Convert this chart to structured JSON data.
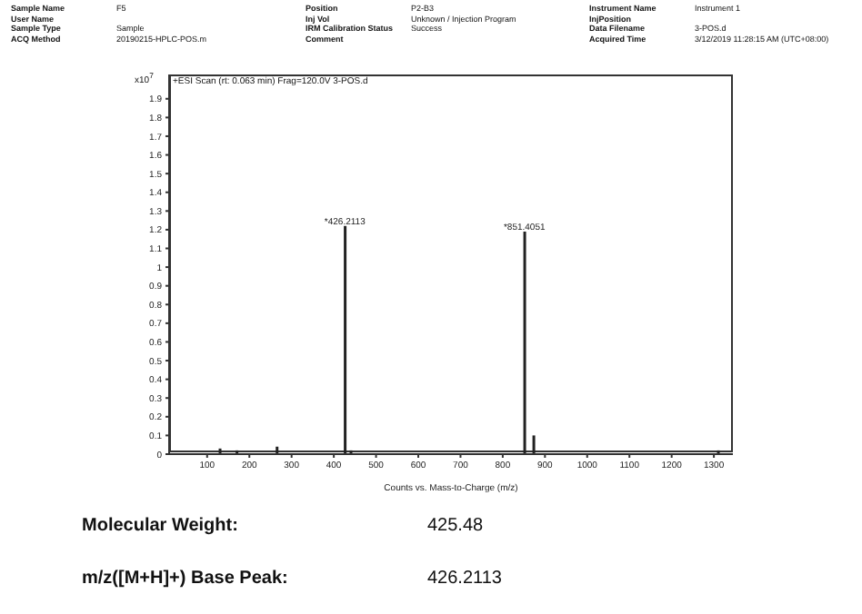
{
  "chart_data": {
    "type": "bar",
    "title": "+ESI Scan (rt: 0.063 min) Frag=120.0V 3-POS.d",
    "xlabel": "Counts vs. Mass-to-Charge (m/z)",
    "ylabel": "x10$^{7}$",
    "x": [
      130,
      170,
      265,
      426.2,
      440,
      851.4,
      873,
      1310
    ],
    "values": [
      0.03,
      0.02,
      0.04,
      1.22,
      0.02,
      1.19,
      0.1,
      0.02
    ],
    "color": "#222222",
    "xlim": [
      10,
      1345
    ],
    "xticks": [
      100,
      200,
      300,
      400,
      500,
      600,
      700,
      800,
      900,
      1000,
      1100,
      1200,
      1300
    ],
    "ylim": [
      0,
      2.03
    ],
    "yticks": [
      0,
      0.1,
      0.2,
      0.3,
      0.4,
      0.5,
      0.6,
      0.7,
      0.8,
      0.9,
      1,
      1.1,
      1.2,
      1.3,
      1.4,
      1.5,
      1.6,
      1.7,
      1.8,
      1.9
    ],
    "annotations": [
      "Sample Name\tF5",
      "User Name",
      "Sample Type\tSample",
      "ACQ Method\t20190215-HPLC-POS.m",
      "Position\tP2-B3",
      "Inj Vol\tUnknown / Injection Program",
      "IRM Calibration Status\tSuccess",
      "Comment",
      "Instrument Name\tInstrument 1",
      "InjPosition",
      "Data Filename\t3-POS.d",
      "Acquired Time\t3/12/2019 11:28:15 AM (UTC+08:00)",
      {
        "text": "*426.2113",
        "x": 426.2,
        "y": 1.22
      },
      {
        "text": "*851.4051",
        "x": 851.4,
        "y": 1.19
      },
      "Molecular Weight:\t425.48",
      "m/z([M+H]+) Base Peak:\t426.2113"
    ]
  }
}
